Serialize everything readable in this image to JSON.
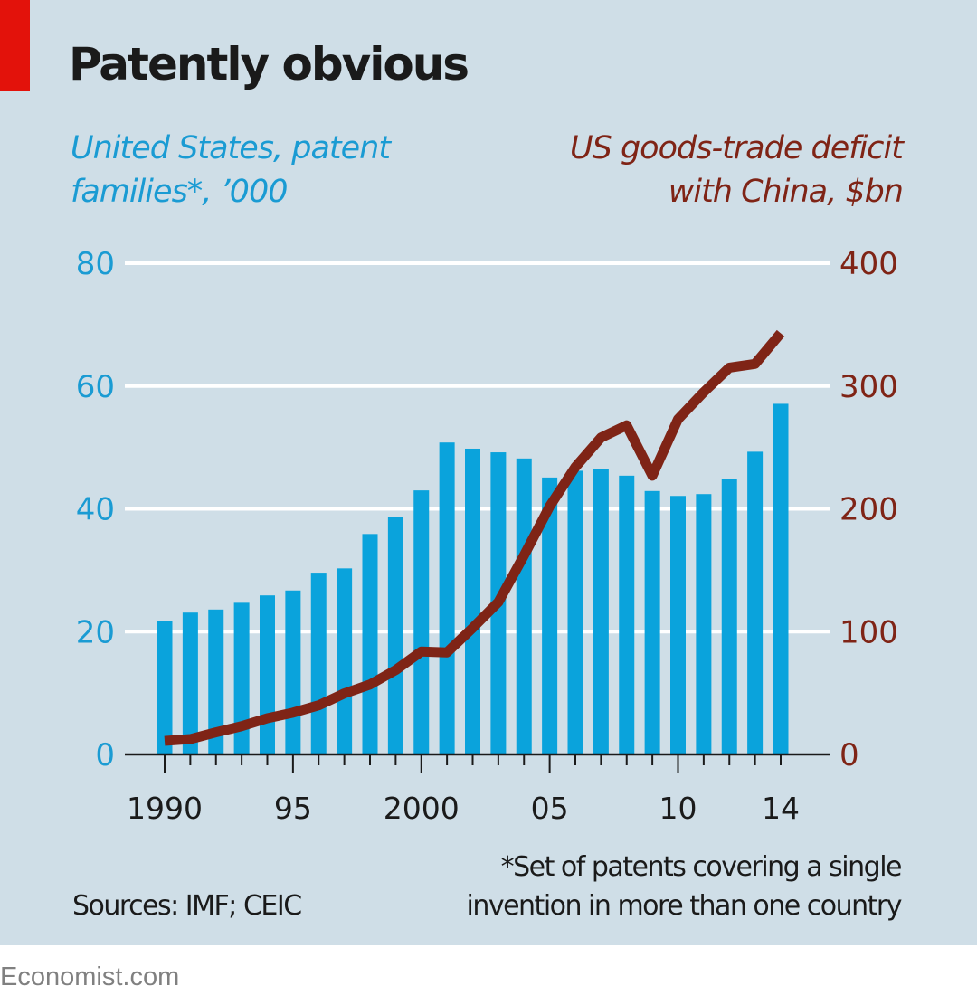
{
  "header": {
    "title": "Patently obvious",
    "subtitle_left_line1": "United States, patent",
    "subtitle_left_line2": "families*, ’000",
    "subtitle_right_line1": "US goods-trade deficit",
    "subtitle_right_line2": "with China, $bn"
  },
  "footer": {
    "sources": "Sources: IMF; CEIC",
    "footnote_line1": "*Set of patents covering a single",
    "footnote_line2": "invention in more than one country",
    "brand": "Economist.com"
  },
  "colors": {
    "background": "#cfdee7",
    "accent_red": "#e3120b",
    "bar_blue": "#0aa3dc",
    "line_brown": "#7f2416",
    "gridline": "#ffffff",
    "axis": "#1a1a1a"
  },
  "chart_data": {
    "type": "bar+line",
    "title": "Patently obvious",
    "x": [
      1990,
      1991,
      1992,
      1993,
      1994,
      1995,
      1996,
      1997,
      1998,
      1999,
      2000,
      2001,
      2002,
      2003,
      2004,
      2005,
      2006,
      2007,
      2008,
      2009,
      2010,
      2011,
      2012,
      2013,
      2014
    ],
    "x_tick_labels": [
      {
        "year": 1990,
        "label": "1990"
      },
      {
        "year": 1995,
        "label": "95"
      },
      {
        "year": 2000,
        "label": "2000"
      },
      {
        "year": 2005,
        "label": "05"
      },
      {
        "year": 2010,
        "label": "10"
      },
      {
        "year": 2014,
        "label": "14"
      }
    ],
    "series": [
      {
        "name": "United States, patent families*, '000",
        "type": "bar",
        "axis": "left",
        "values": [
          21.8,
          23.1,
          23.6,
          24.7,
          25.9,
          26.7,
          29.6,
          30.3,
          35.9,
          38.7,
          43.0,
          50.8,
          49.8,
          49.2,
          48.2,
          45.1,
          46.2,
          46.5,
          45.4,
          42.9,
          42.1,
          42.4,
          44.8,
          49.3,
          57.1
        ]
      },
      {
        "name": "US goods-trade deficit with China, $bn",
        "type": "line",
        "axis": "right",
        "values": [
          11,
          12.5,
          18,
          23,
          29.5,
          34,
          40,
          49.7,
          56.9,
          68.7,
          83.8,
          83.1,
          103,
          124,
          162,
          202,
          234,
          258,
          268,
          227,
          273,
          295,
          315,
          318,
          343
        ]
      }
    ],
    "y_left": {
      "label": "United States, patent families*, '000",
      "range": [
        0,
        80
      ],
      "ticks": [
        "0",
        "20",
        "40",
        "60",
        "80"
      ]
    },
    "y_right": {
      "label": "US goods-trade deficit with China, $bn",
      "range": [
        0,
        400
      ],
      "ticks": [
        "0",
        "100",
        "200",
        "300",
        "400"
      ]
    },
    "grid": true,
    "legend": "none (axis titles act as legend: left-blue bars, right-brown line)"
  }
}
